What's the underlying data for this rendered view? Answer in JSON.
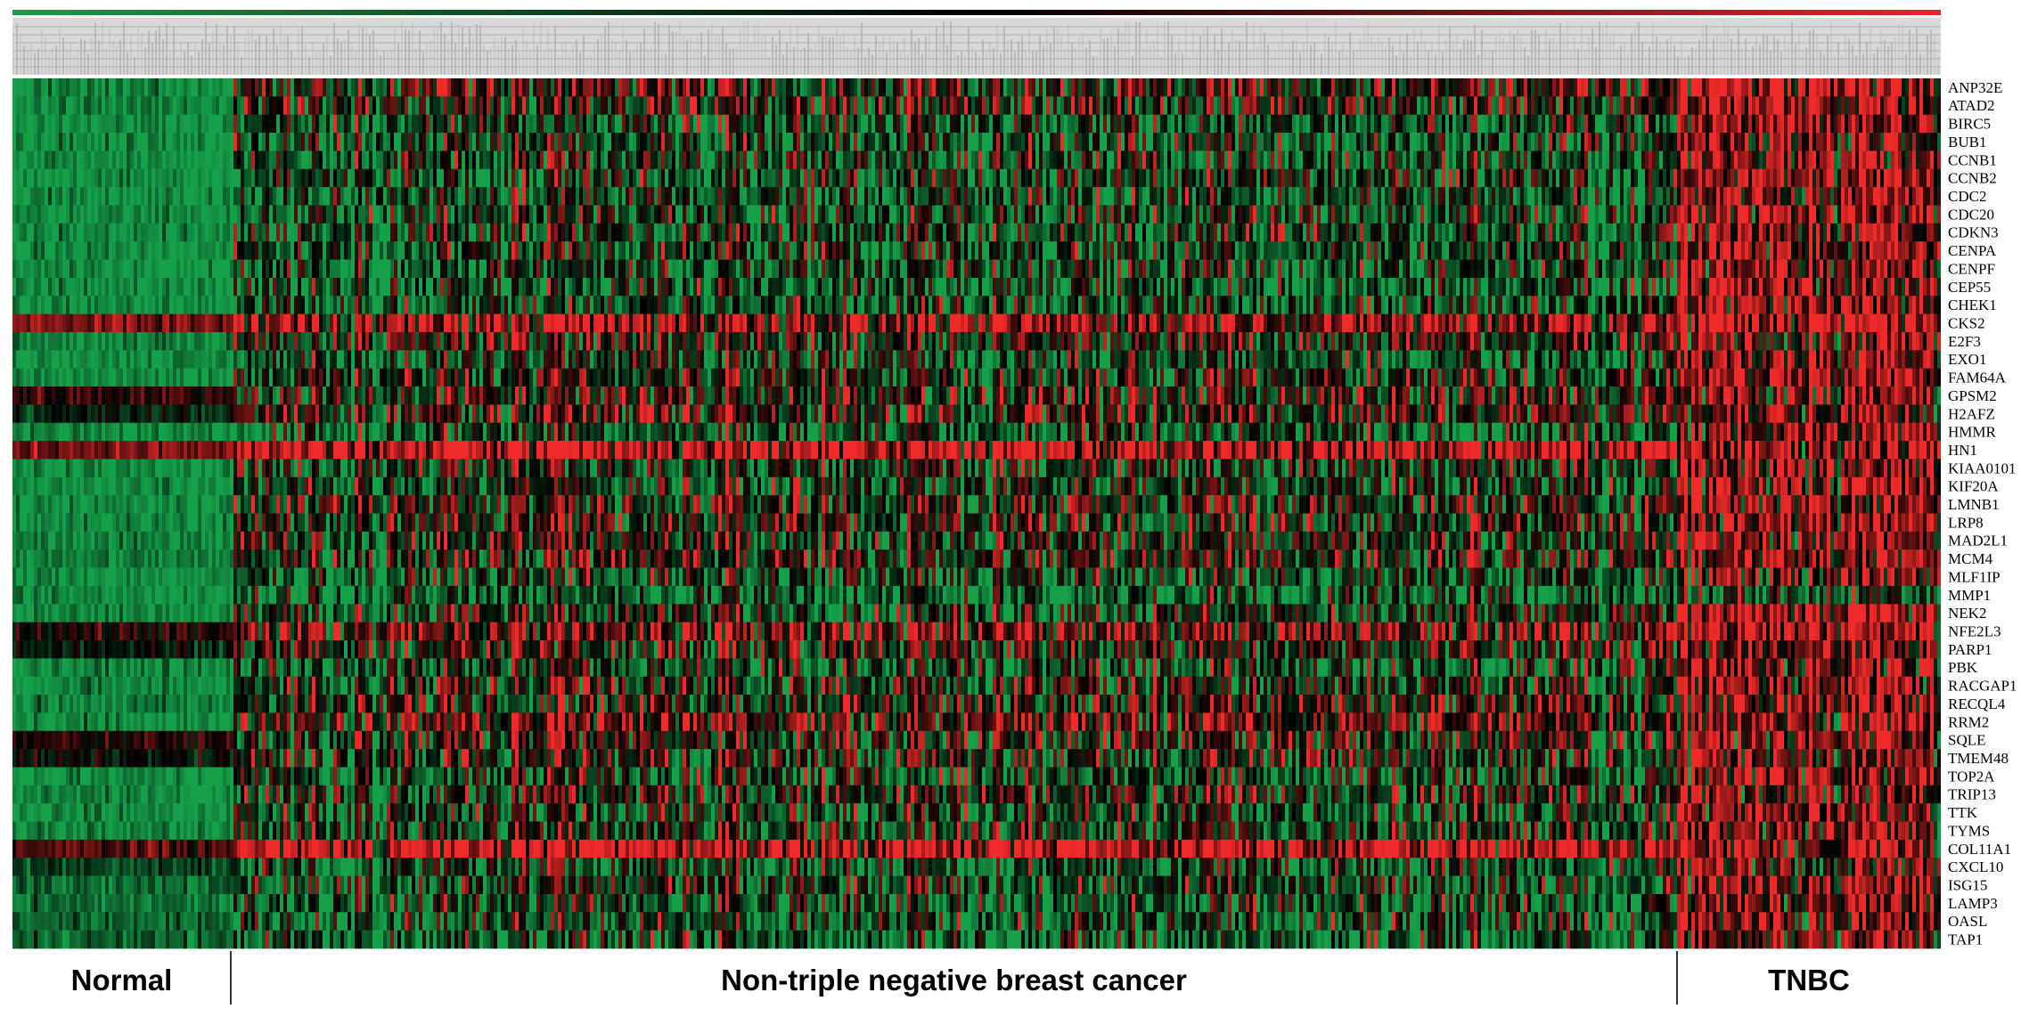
{
  "chart_data": {
    "type": "heatmap",
    "title": "",
    "xlabel": "",
    "ylabel": "",
    "colors": {
      "low": "#16a04a",
      "mid": "#000000",
      "high": "#ee2a2a",
      "scale_low": "#1c9a47",
      "scale_high": "#e4262b"
    },
    "genes": [
      "ANP32E",
      "ATAD2",
      "BIRC5",
      "BUB1",
      "CCNB1",
      "CCNB2",
      "CDC2",
      "CDC20",
      "CDKN3",
      "CENPA",
      "CENPF",
      "CEP55",
      "CHEK1",
      "CKS2",
      "E2F3",
      "EXO1",
      "FAM64A",
      "GPSM2",
      "H2AFZ",
      "HMMR",
      "HN1",
      "KIAA0101",
      "KIF20A",
      "LMNB1",
      "LRP8",
      "MAD2L1",
      "MCM4",
      "MLF1IP",
      "MMP1",
      "NEK2",
      "NFE2L3",
      "PARP1",
      "PBK",
      "RACGAP1",
      "RECQL4",
      "RRM2",
      "SQLE",
      "TMEM48",
      "TOP2A",
      "TRIP13",
      "TTK",
      "TYMS",
      "COL11A1",
      "CXCL10",
      "ISG15",
      "LAMP3",
      "OASL",
      "TAP1"
    ],
    "groups": [
      {
        "label": "Normal",
        "fraction": 0.113
      },
      {
        "label": "Non-triple negative breast cancer",
        "fraction": 0.75
      },
      {
        "label": "TNBC",
        "fraction": 0.137
      }
    ],
    "group_mean_expression": {
      "Normal": [
        -0.9,
        -0.85,
        -0.9,
        -0.9,
        -0.9,
        -0.9,
        -0.9,
        -0.9,
        -0.9,
        -0.9,
        -0.9,
        -0.9,
        -0.9,
        0.5,
        -0.8,
        -0.85,
        -0.9,
        0.2,
        -0.2,
        -0.9,
        0.5,
        -0.9,
        -0.9,
        -0.85,
        -0.85,
        -0.85,
        -0.8,
        -0.9,
        -0.9,
        -0.85,
        0.1,
        -0.1,
        -0.85,
        -0.85,
        -0.8,
        -0.9,
        0.1,
        -0.1,
        -0.9,
        -0.85,
        -0.9,
        -0.85,
        0.3,
        -0.4,
        -0.6,
        -0.7,
        -0.6,
        -0.6
      ],
      "Non-triple negative breast cancer": [
        0.1,
        0.0,
        -0.4,
        -0.4,
        -0.3,
        -0.3,
        -0.4,
        -0.3,
        -0.3,
        -0.3,
        -0.4,
        -0.5,
        -0.4,
        0.6,
        0.0,
        -0.4,
        -0.1,
        0.0,
        0.1,
        -0.4,
        0.85,
        -0.2,
        -0.3,
        0.0,
        0.0,
        -0.1,
        0.0,
        -0.4,
        -0.6,
        -0.2,
        0.4,
        0.0,
        -0.4,
        -0.1,
        0.0,
        0.3,
        0.0,
        -0.1,
        -0.3,
        -0.1,
        -0.3,
        -0.2,
        0.9,
        -0.4,
        -0.3,
        -0.4,
        -0.4,
        -0.5
      ],
      "TNBC": [
        0.8,
        0.7,
        0.7,
        0.6,
        0.6,
        0.6,
        0.6,
        0.7,
        0.6,
        0.6,
        0.7,
        0.7,
        0.6,
        0.9,
        0.6,
        0.6,
        0.7,
        0.5,
        0.5,
        0.6,
        0.8,
        0.6,
        0.6,
        0.6,
        0.6,
        0.6,
        0.6,
        0.5,
        -0.2,
        0.7,
        0.8,
        0.5,
        0.6,
        0.6,
        0.5,
        0.6,
        0.6,
        0.4,
        0.6,
        0.5,
        0.6,
        0.5,
        0.6,
        0.5,
        0.6,
        0.5,
        0.5,
        0.5
      ]
    }
  }
}
